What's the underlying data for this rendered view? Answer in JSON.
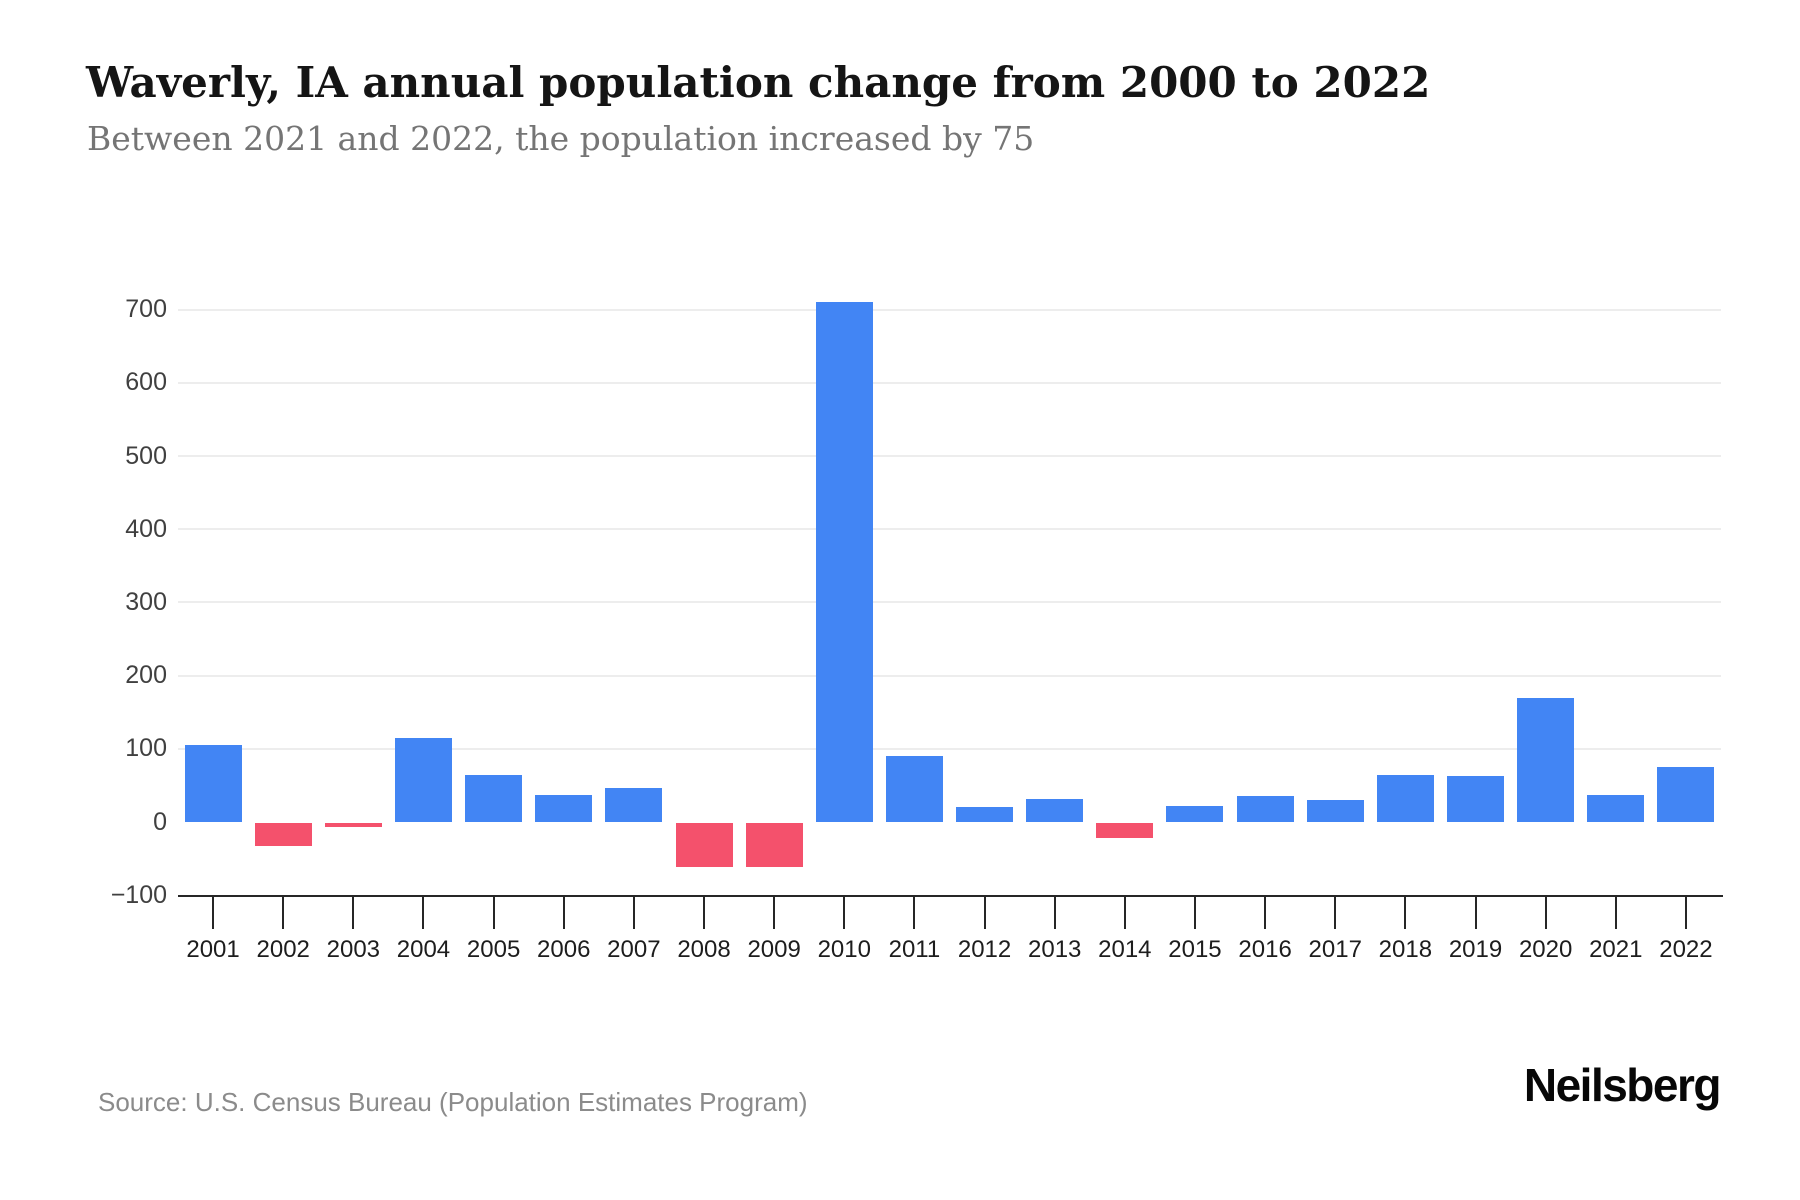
{
  "page": {
    "title": "Waverly, IA annual population change from 2000 to 2022",
    "subtitle": "Between 2021 and 2022, the population increased by 75",
    "source": "Source: U.S. Census Bureau (Population Estimates Program)",
    "brand": "Neilsberg"
  },
  "chart_data": {
    "type": "bar",
    "title": "Waverly, IA annual population change from 2000 to 2022",
    "xlabel": "",
    "ylabel": "",
    "categories": [
      "2001",
      "2002",
      "2003",
      "2004",
      "2005",
      "2006",
      "2007",
      "2008",
      "2009",
      "2010",
      "2011",
      "2012",
      "2013",
      "2014",
      "2015",
      "2016",
      "2017",
      "2018",
      "2019",
      "2020",
      "2021",
      "2022"
    ],
    "values": [
      105,
      -32,
      -5,
      115,
      64,
      37,
      46,
      -60,
      -60,
      710,
      90,
      21,
      31,
      -21,
      22,
      36,
      30,
      64,
      63,
      170,
      37,
      75
    ],
    "ylim": [
      -100,
      700
    ],
    "yticks": [
      700,
      600,
      500,
      400,
      300,
      200,
      100,
      0,
      -100
    ],
    "grid": "horizontal gridlines at 100-unit intervals, no zero line, no vertical grid",
    "legend": "none",
    "annotation_2022": "increase of 75 between 2021 and 2022 (stated in subtitle)",
    "colors": {
      "positive_bar": "#4285F4",
      "negative_bar": "#F4516C",
      "gridline": "#ededed",
      "axis": "#262626",
      "tick_label": "#1d1d1d",
      "y_label": "#404040"
    }
  }
}
